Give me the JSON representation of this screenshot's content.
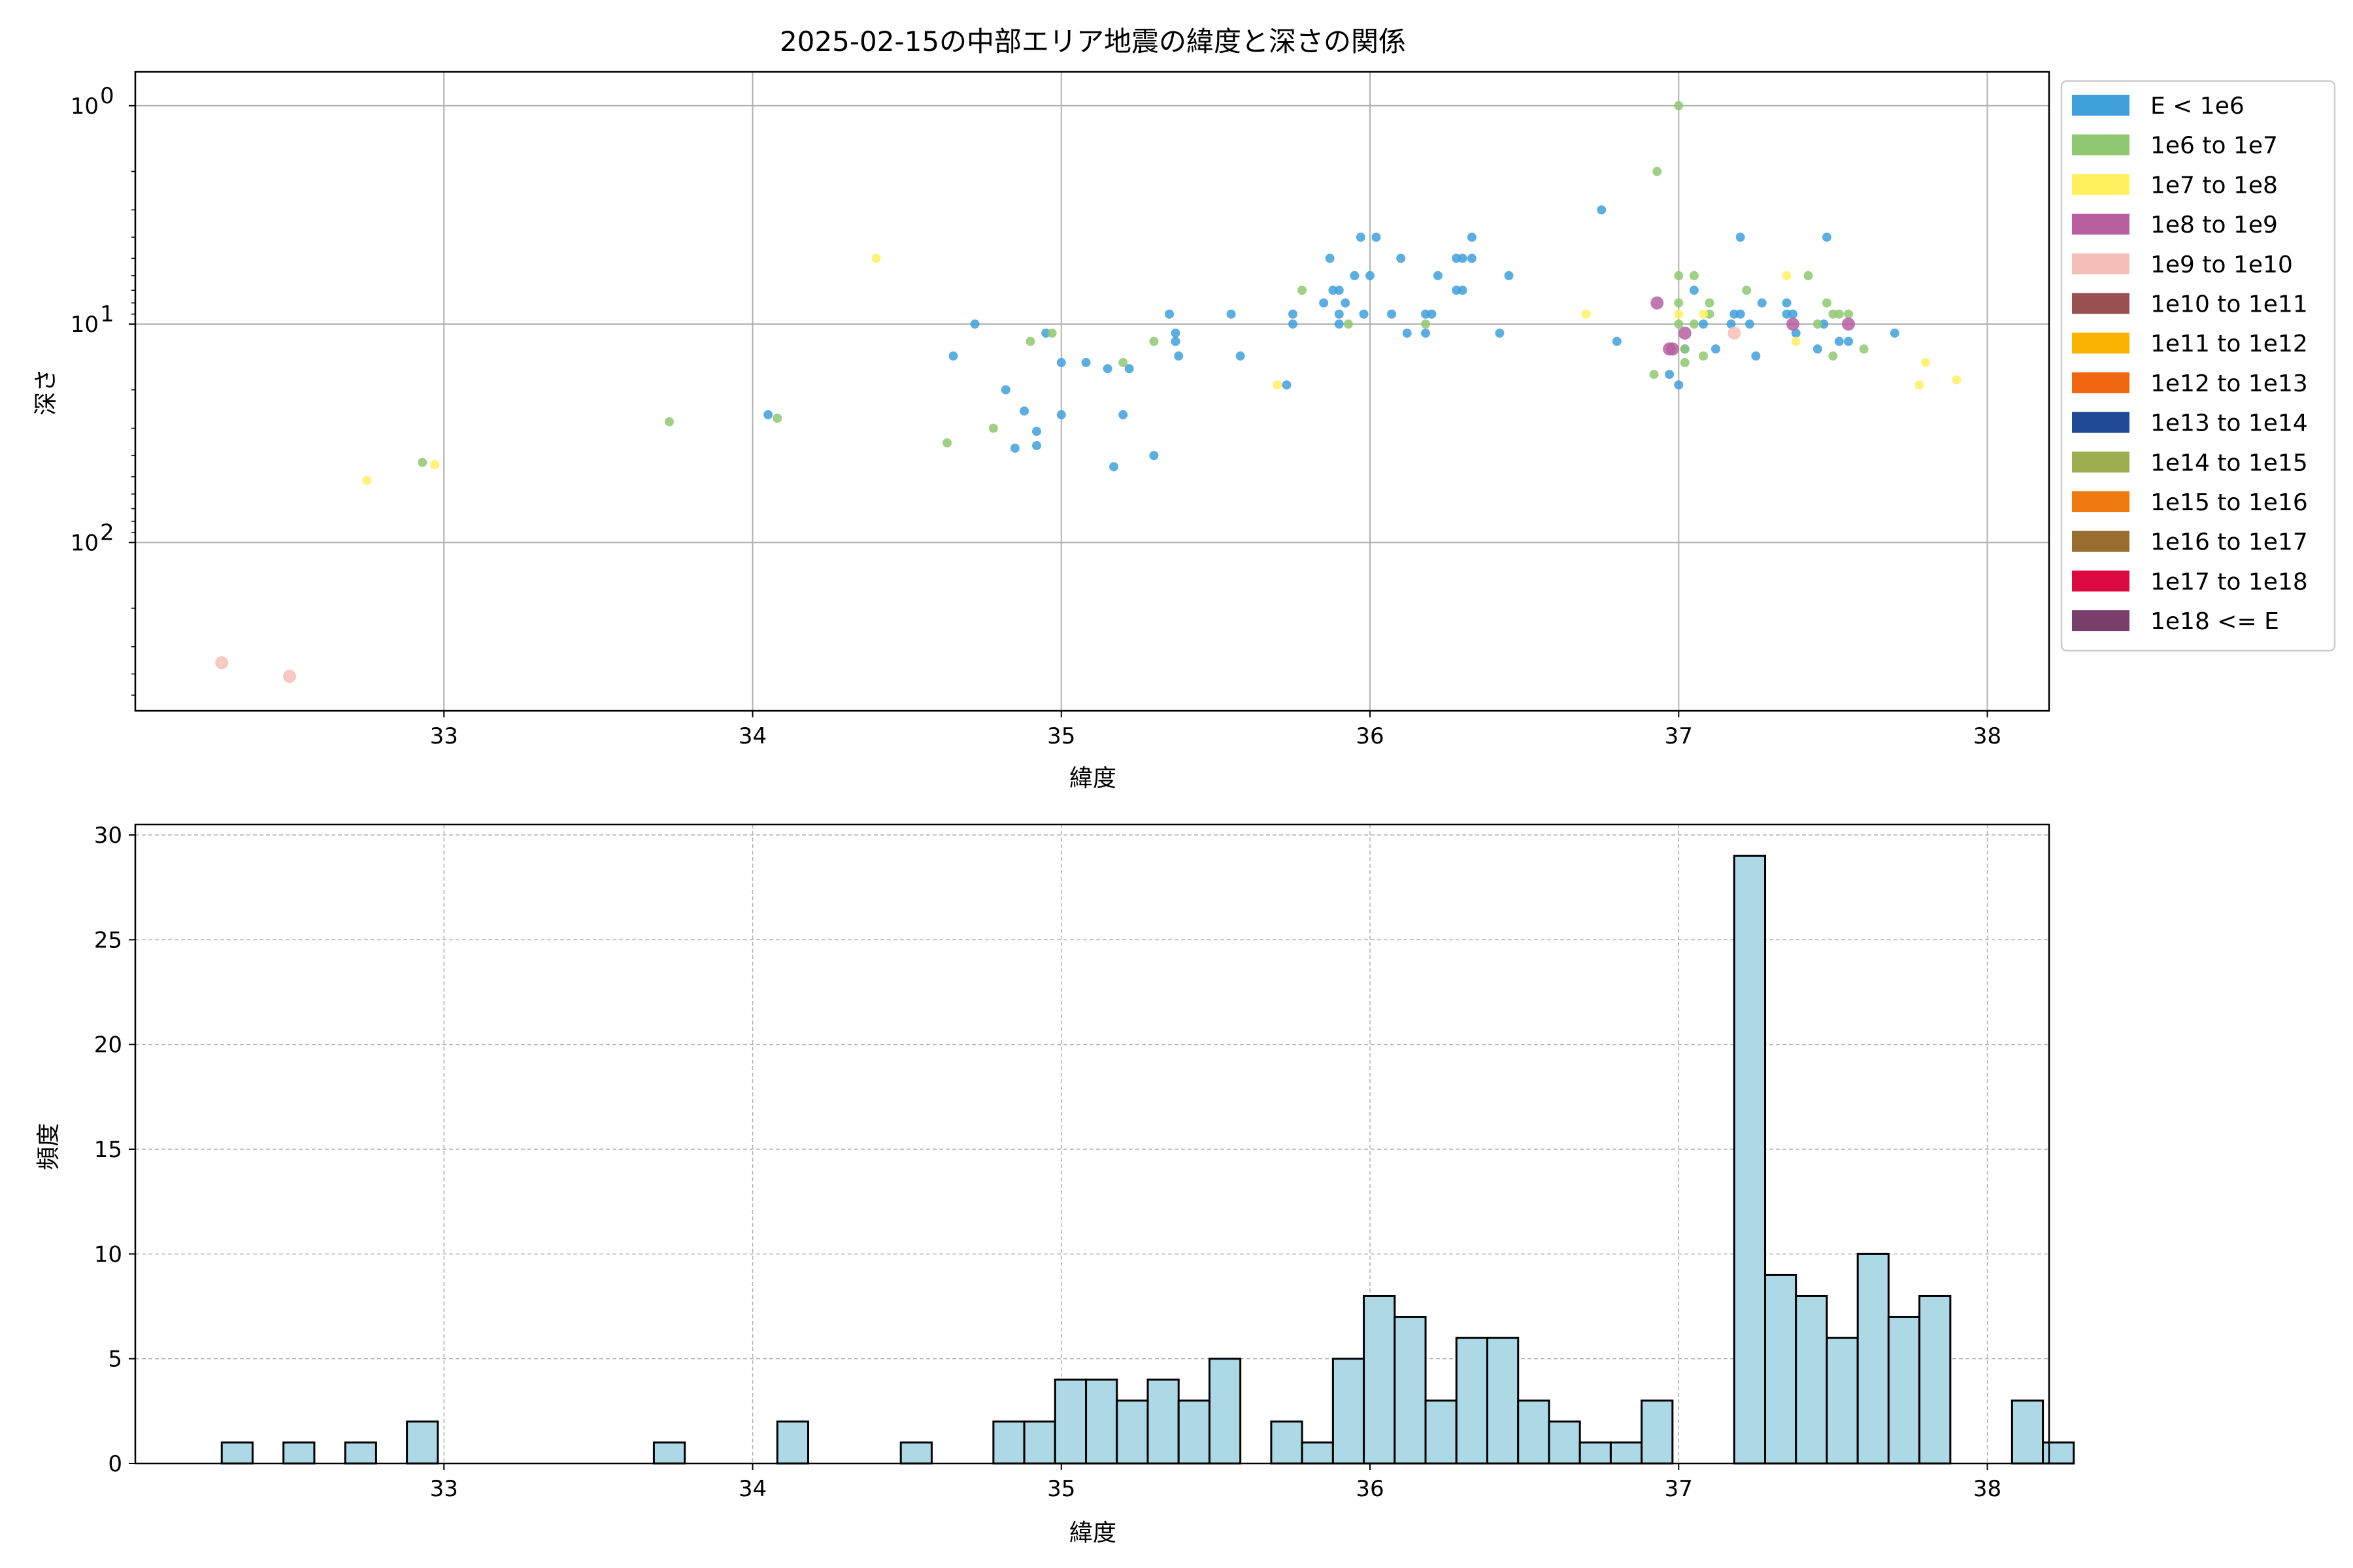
{
  "chart_data": [
    {
      "type": "scatter",
      "title": "2025-02-15の中部エリア地震の緯度と深さの関係",
      "xlabel": "緯度",
      "ylabel": "深さ",
      "xlim": [
        32.0,
        38.2
      ],
      "ylim": [
        0.7,
        590
      ],
      "y_scale": "log",
      "y_inverted": true,
      "x_ticks": [
        33,
        34,
        35,
        36,
        37,
        38
      ],
      "y_ticks": [
        {
          "value": 1,
          "label_base": "10",
          "label_exp": "0"
        },
        {
          "value": 10,
          "label_base": "10",
          "label_exp": "1"
        },
        {
          "value": 100,
          "label_base": "10",
          "label_exp": "2"
        }
      ],
      "grid": true,
      "legend_placement": "outside-right",
      "legend": [
        {
          "label": "E < 1e6",
          "color": "#3fa0dc"
        },
        {
          "label": "1e6 to 1e7",
          "color": "#8fc870"
        },
        {
          "label": "1e7 to 1e8",
          "color": "#fff060"
        },
        {
          "label": "1e8 to 1e9",
          "color": "#b660a0"
        },
        {
          "label": "1e9 to 1e10",
          "color": "#f4c0b8"
        },
        {
          "label": "1e10 to 1e11",
          "color": "#9a5050"
        },
        {
          "label": "1e11 to 1e12",
          "color": "#f8b400"
        },
        {
          "label": "1e12 to 1e13",
          "color": "#ee6610"
        },
        {
          "label": "1e13 to 1e14",
          "color": "#1e4a96"
        },
        {
          "label": "1e14 to 1e15",
          "color": "#9cae50"
        },
        {
          "label": "1e15 to 1e16",
          "color": "#ee7a10"
        },
        {
          "label": "1e16 to 1e17",
          "color": "#9a6e30"
        },
        {
          "label": "1e17 to 1e18",
          "color": "#dc0840"
        },
        {
          "label": "1e18 <= E",
          "color": "#7a3e6c"
        }
      ],
      "series": [
        {
          "category": "E < 1e6",
          "points": [
            [
              34.05,
              26
            ],
            [
              34.65,
              14
            ],
            [
              34.72,
              10
            ],
            [
              34.82,
              20
            ],
            [
              34.85,
              37
            ],
            [
              34.88,
              25
            ],
            [
              34.92,
              31
            ],
            [
              34.92,
              36
            ],
            [
              34.95,
              11
            ],
            [
              35.0,
              15
            ],
            [
              35.0,
              26
            ],
            [
              35.08,
              15
            ],
            [
              35.15,
              16
            ],
            [
              35.17,
              45
            ],
            [
              35.2,
              26
            ],
            [
              35.22,
              16
            ],
            [
              35.3,
              40
            ],
            [
              35.35,
              9
            ],
            [
              35.37,
              11
            ],
            [
              35.37,
              12
            ],
            [
              35.38,
              14
            ],
            [
              35.55,
              9
            ],
            [
              35.58,
              14
            ],
            [
              35.73,
              19
            ],
            [
              35.75,
              9
            ],
            [
              35.75,
              10
            ],
            [
              35.85,
              8
            ],
            [
              35.87,
              5
            ],
            [
              35.88,
              7
            ],
            [
              35.9,
              7
            ],
            [
              35.9,
              9
            ],
            [
              35.9,
              10
            ],
            [
              35.92,
              8
            ],
            [
              35.95,
              6
            ],
            [
              35.97,
              4
            ],
            [
              35.98,
              9
            ],
            [
              36.0,
              6
            ],
            [
              36.02,
              4
            ],
            [
              36.07,
              9
            ],
            [
              36.1,
              5
            ],
            [
              36.12,
              11
            ],
            [
              36.18,
              11
            ],
            [
              36.18,
              9
            ],
            [
              36.2,
              9
            ],
            [
              36.22,
              6
            ],
            [
              36.28,
              7
            ],
            [
              36.28,
              5
            ],
            [
              36.3,
              5
            ],
            [
              36.3,
              7
            ],
            [
              36.33,
              4
            ],
            [
              36.33,
              5
            ],
            [
              36.42,
              11
            ],
            [
              36.45,
              6
            ],
            [
              36.75,
              3
            ],
            [
              36.8,
              12
            ],
            [
              36.97,
              17
            ],
            [
              37.0,
              19
            ],
            [
              37.02,
              13
            ],
            [
              37.05,
              7
            ],
            [
              37.08,
              10
            ],
            [
              37.12,
              13
            ],
            [
              37.17,
              10
            ],
            [
              37.18,
              9
            ],
            [
              37.2,
              4
            ],
            [
              37.2,
              9
            ],
            [
              37.23,
              10
            ],
            [
              37.25,
              14
            ],
            [
              37.27,
              8
            ],
            [
              37.35,
              9
            ],
            [
              37.35,
              8
            ],
            [
              37.37,
              9
            ],
            [
              37.38,
              11
            ],
            [
              37.45,
              13
            ],
            [
              37.47,
              10
            ],
            [
              37.48,
              4
            ],
            [
              37.52,
              12
            ],
            [
              37.55,
              12
            ],
            [
              37.7,
              11
            ]
          ]
        },
        {
          "category": "1e6 to 1e7",
          "points": [
            [
              32.93,
              43
            ],
            [
              33.73,
              28
            ],
            [
              34.08,
              27
            ],
            [
              34.63,
              35
            ],
            [
              34.78,
              30
            ],
            [
              34.9,
              12
            ],
            [
              34.97,
              11
            ],
            [
              35.2,
              15
            ],
            [
              35.3,
              12
            ],
            [
              35.78,
              7
            ],
            [
              35.93,
              10
            ],
            [
              36.18,
              10
            ],
            [
              36.92,
              17
            ],
            [
              36.93,
              2
            ],
            [
              37.0,
              1
            ],
            [
              37.0,
              6
            ],
            [
              37.0,
              10
            ],
            [
              37.0,
              8
            ],
            [
              37.02,
              15
            ],
            [
              37.02,
              13
            ],
            [
              37.05,
              10
            ],
            [
              37.05,
              6
            ],
            [
              37.08,
              14
            ],
            [
              37.1,
              8
            ],
            [
              37.1,
              9
            ],
            [
              37.22,
              7
            ],
            [
              37.42,
              6
            ],
            [
              37.45,
              10
            ],
            [
              37.48,
              8
            ],
            [
              37.5,
              9
            ],
            [
              37.5,
              14
            ],
            [
              37.52,
              9
            ],
            [
              37.55,
              9
            ],
            [
              37.6,
              13
            ]
          ]
        },
        {
          "category": "1e7 to 1e8",
          "points": [
            [
              32.75,
              52
            ],
            [
              32.97,
              44
            ],
            [
              34.4,
              5
            ],
            [
              35.7,
              19
            ],
            [
              36.7,
              9
            ],
            [
              37.0,
              9
            ],
            [
              37.08,
              9
            ],
            [
              37.35,
              6
            ],
            [
              37.38,
              12
            ],
            [
              37.78,
              19
            ],
            [
              37.8,
              15
            ],
            [
              37.9,
              18
            ]
          ]
        },
        {
          "category": "1e8 to 1e9",
          "points": [
            [
              36.93,
              8
            ],
            [
              36.97,
              13
            ],
            [
              36.98,
              13
            ],
            [
              37.02,
              11
            ],
            [
              37.37,
              10
            ],
            [
              37.55,
              10
            ]
          ]
        },
        {
          "category": "1e9 to 1e10",
          "points": [
            [
              32.28,
              355
            ],
            [
              32.5,
              410
            ],
            [
              37.18,
              11
            ]
          ]
        }
      ]
    },
    {
      "type": "bar",
      "subtype": "histogram",
      "xlabel": "緯度",
      "ylabel": "頻度",
      "xlim": [
        32.0,
        38.2
      ],
      "ylim": [
        0,
        30.5
      ],
      "x_ticks": [
        33,
        34,
        35,
        36,
        37,
        38
      ],
      "y_ticks": [
        0,
        5,
        10,
        15,
        20,
        25,
        30
      ],
      "grid": true,
      "color": "#add8e6",
      "bin_start": 32.28,
      "bin_width": 0.1,
      "values": [
        1,
        0,
        1,
        0,
        1,
        0,
        2,
        0,
        0,
        0,
        0,
        0,
        0,
        0,
        1,
        0,
        0,
        0,
        2,
        0,
        0,
        0,
        1,
        0,
        0,
        2,
        2,
        4,
        4,
        3,
        4,
        3,
        5,
        0,
        2,
        1,
        5,
        8,
        7,
        3,
        6,
        6,
        3,
        2,
        1,
        1,
        3,
        0,
        0,
        29,
        9,
        8,
        6,
        10,
        7,
        8,
        0,
        0,
        3,
        1
      ]
    }
  ]
}
